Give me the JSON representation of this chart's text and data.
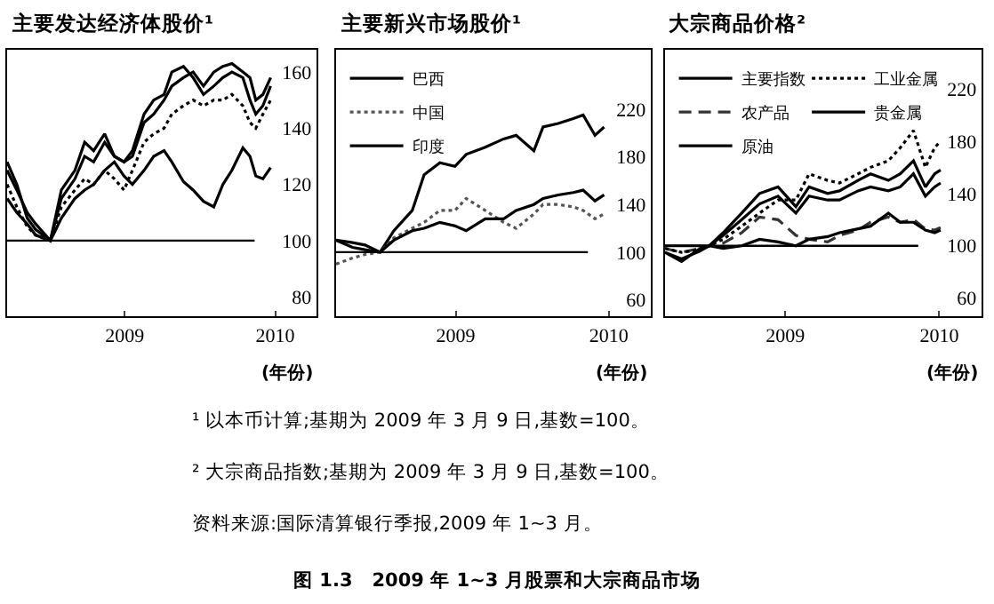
{
  "chart_data": [
    {
      "type": "line",
      "title": "主要发达经济体股价¹",
      "xlabel": "(年份)",
      "x": [
        "2009-01-01",
        "2009-01-16",
        "2009-02-01",
        "2009-02-14",
        "2009-03-09",
        "2009-03-26",
        "2009-04-16",
        "2009-05-01",
        "2009-05-15",
        "2009-06-01",
        "2009-06-16",
        "2009-07-01",
        "2009-07-14",
        "2009-08-01",
        "2009-08-16",
        "2009-09-01",
        "2009-09-13",
        "2009-10-01",
        "2009-10-16",
        "2009-11-01",
        "2009-11-17",
        "2009-12-01",
        "2009-12-15",
        "2010-01-01",
        "2010-01-12",
        "2010-01-21",
        "2010-02-01",
        "2010-02-13"
      ],
      "xlim": [
        "2009-01-01",
        "2010-04-25"
      ],
      "xticks": [
        {
          "value": "2009-07-02",
          "label": "2009"
        },
        {
          "value": "2010-02-20",
          "label": "2010"
        }
      ],
      "ylim": [
        73,
        168
      ],
      "yticks": [
        80,
        100,
        120,
        140,
        160
      ],
      "ref_lines": [
        {
          "axis": "y",
          "value": 100
        }
      ],
      "series": [
        {
          "color": "#000000",
          "line_style": "solid",
          "values": [
            125,
            118,
            110,
            106,
            100,
            115,
            122,
            130,
            128,
            135,
            130,
            128,
            130,
            142,
            145,
            150,
            155,
            158,
            160,
            155,
            160,
            162,
            163,
            160,
            158,
            150,
            152,
            158
          ]
        },
        {
          "color": "#000000",
          "line_style": "solid",
          "values": [
            128,
            120,
            108,
            104,
            100,
            118,
            125,
            135,
            132,
            138,
            130,
            128,
            132,
            145,
            150,
            152,
            160,
            162,
            158,
            152,
            155,
            158,
            160,
            158,
            150,
            145,
            148,
            155
          ]
        },
        {
          "color": "#000000",
          "line_style": "solid",
          "values": [
            115,
            110,
            106,
            102,
            100,
            108,
            115,
            118,
            120,
            125,
            128,
            123,
            120,
            125,
            130,
            132,
            128,
            121,
            118,
            114,
            112,
            120,
            125,
            133,
            130,
            123,
            122,
            126
          ]
        },
        {
          "color": "#000000",
          "line_style": "dotted",
          "values": [
            120,
            112,
            105,
            102,
            100,
            112,
            118,
            122,
            120,
            125,
            122,
            118,
            125,
            135,
            138,
            140,
            145,
            148,
            150,
            148,
            150,
            150,
            152,
            148,
            142,
            140,
            145,
            150
          ]
        }
      ],
      "annotations": [
        "¹ 以本币计算;基期为 2009 年 3 月 9 日,基数=100。",
        "² 大宗商品指数;基期为 2009 年 3 月 9 日,基数=100。",
        "资料来源:国际清算银行季报,2009 年 1~3 月。",
        "图 1.3　2009 年 1~3 月股票和大宗商品市场"
      ]
    },
    {
      "type": "line",
      "title": "主要新兴市场股价¹",
      "xlabel": "(年份)",
      "legend": "top left",
      "x": [
        "2009-01-01",
        "2009-01-26",
        "2009-02-14",
        "2009-03-09",
        "2009-03-30",
        "2009-04-27",
        "2009-05-15",
        "2009-06-08",
        "2009-07-01",
        "2009-07-18",
        "2009-08-16",
        "2009-09-13",
        "2009-10-02",
        "2009-10-29",
        "2009-11-12",
        "2009-12-05",
        "2009-12-28",
        "2010-01-12",
        "2010-01-30",
        "2010-02-13"
      ],
      "xlim": [
        "2009-01-01",
        "2010-04-25"
      ],
      "xticks": [
        {
          "value": "2009-07-02",
          "label": "2009"
        },
        {
          "value": "2010-02-20",
          "label": "2010"
        }
      ],
      "ylim": [
        46,
        270
      ],
      "yticks": [
        60,
        100,
        140,
        180,
        220
      ],
      "ref_lines": [
        {
          "axis": "y",
          "value": 100
        }
      ],
      "series": [
        {
          "name": "巴西",
          "color": "#000000",
          "line_style": "solid",
          "values": [
            110,
            108,
            106,
            100,
            118,
            135,
            165,
            175,
            172,
            182,
            188,
            195,
            198,
            185,
            205,
            208,
            212,
            215,
            198,
            205
          ]
        },
        {
          "name": "中国",
          "color": "#555555",
          "line_style": "dotted",
          "values": [
            90,
            95,
            98,
            100,
            112,
            120,
            125,
            135,
            135,
            145,
            135,
            125,
            120,
            132,
            140,
            140,
            138,
            135,
            128,
            132
          ]
        },
        {
          "name": "印度",
          "color": "#000000",
          "line_style": "solid",
          "values": [
            110,
            104,
            102,
            100,
            110,
            118,
            120,
            125,
            122,
            118,
            128,
            128,
            135,
            140,
            145,
            148,
            150,
            152,
            143,
            148
          ]
        }
      ]
    },
    {
      "type": "line",
      "title": "大宗商品价格²",
      "xlabel": "(年份)",
      "legend": "top left",
      "x": [
        "2009-01-01",
        "2009-01-26",
        "2009-02-23",
        "2009-03-09",
        "2009-03-30",
        "2009-04-27",
        "2009-05-24",
        "2009-06-21",
        "2009-07-18",
        "2009-08-07",
        "2009-09-04",
        "2009-09-22",
        "2009-10-20",
        "2009-11-08",
        "2009-12-05",
        "2009-12-23",
        "2010-01-12",
        "2010-01-30",
        "2010-02-13",
        "2010-02-22"
      ],
      "xlim": [
        "2009-01-01",
        "2010-04-25"
      ],
      "xticks": [
        {
          "value": "2009-07-02",
          "label": "2009"
        },
        {
          "value": "2010-02-20",
          "label": "2010"
        }
      ],
      "ylim": [
        46,
        250
      ],
      "yticks": [
        60,
        100,
        140,
        180,
        220
      ],
      "ref_lines": [
        {
          "axis": "y",
          "value": 100
        }
      ],
      "series": [
        {
          "name": "主要指数",
          "color": "#000000",
          "line_style": "solid",
          "values": [
            95,
            90,
            96,
            100,
            108,
            120,
            132,
            138,
            125,
            138,
            135,
            135,
            142,
            145,
            142,
            145,
            155,
            138,
            145,
            148
          ]
        },
        {
          "name": "农产品",
          "color": "#333333",
          "line_style": "dashed",
          "values": [
            98,
            95,
            98,
            100,
            102,
            110,
            122,
            120,
            108,
            105,
            103,
            108,
            112,
            118,
            122,
            118,
            120,
            113,
            112,
            114
          ]
        },
        {
          "name": "原油",
          "color": "#000000",
          "line_style": "solid",
          "values": [
            95,
            88,
            98,
            100,
            110,
            125,
            140,
            145,
            130,
            145,
            140,
            142,
            150,
            155,
            150,
            155,
            165,
            145,
            155,
            158
          ]
        },
        {
          "name": "工业金属",
          "color": "#000000",
          "line_style": "dotted",
          "values": [
            98,
            95,
            97,
            100,
            105,
            115,
            125,
            135,
            135,
            155,
            150,
            148,
            155,
            160,
            165,
            175,
            188,
            160,
            175,
            180
          ]
        },
        {
          "name": "贵金属",
          "color": "#000000",
          "line_style": "solid",
          "values": [
            100,
            100,
            100,
            100,
            98,
            100,
            105,
            103,
            100,
            105,
            107,
            110,
            113,
            115,
            125,
            118,
            118,
            112,
            110,
            112
          ]
        }
      ]
    }
  ]
}
